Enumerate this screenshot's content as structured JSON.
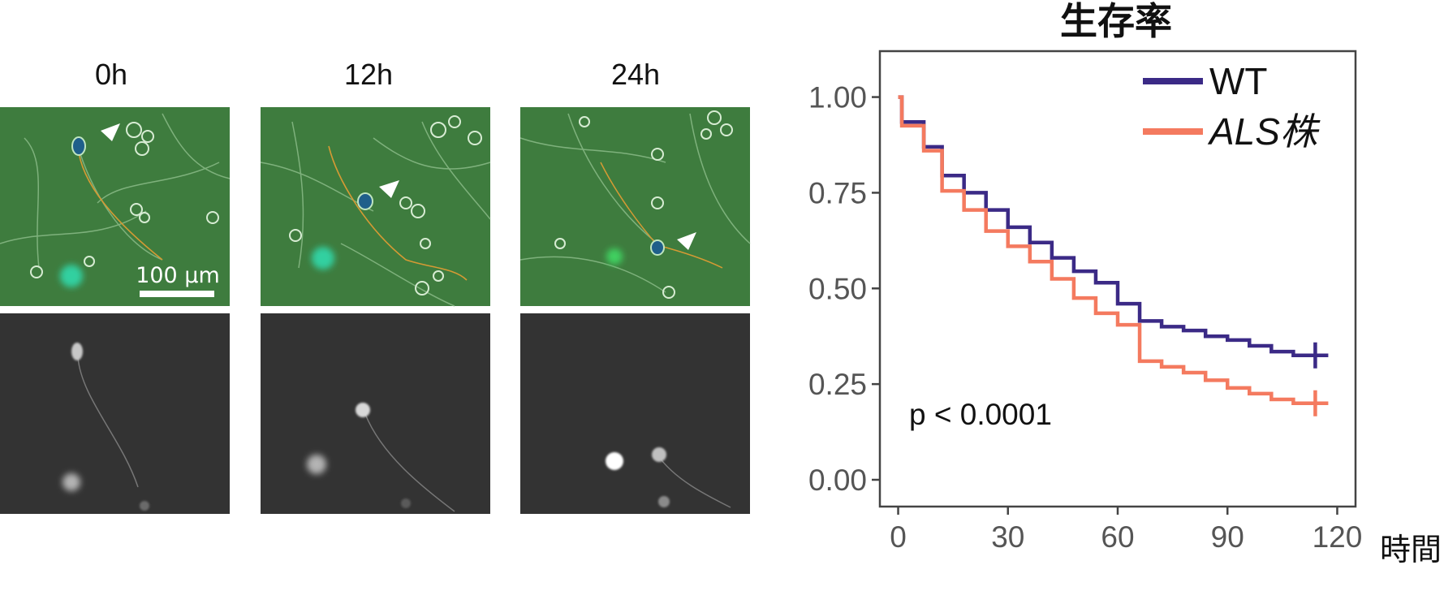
{
  "panels": {
    "time_labels": [
      "0h",
      "12h",
      "24h"
    ],
    "scale_bar_label": "100 µm",
    "colors": {
      "phase_bg": "#3e7c3e",
      "fluor_bg": "#333333",
      "neurite": "#d59a34",
      "cell_fill": "#1f5f8a",
      "cyan_cell": "#30d0a0",
      "arrow": "#ffffff"
    }
  },
  "chart_data": {
    "type": "line",
    "title": "生存率",
    "xlabel": "時間",
    "ylabel": "",
    "xlim": [
      -5,
      125
    ],
    "ylim": [
      -0.07,
      1.12
    ],
    "xticks": [
      0,
      30,
      60,
      90,
      120
    ],
    "yticks": [
      0.0,
      0.25,
      0.5,
      0.75,
      1.0
    ],
    "ytick_labels": [
      "0.00",
      "0.25",
      "0.50",
      "0.75",
      "1.00"
    ],
    "step": true,
    "censor_marker": "+",
    "legend_position": "top-right",
    "annotation": "p < 0.0001",
    "series": [
      {
        "name": "WT",
        "color": "#3b2a86",
        "x": [
          0,
          1,
          7,
          12,
          18,
          24,
          30,
          36,
          42,
          48,
          54,
          60,
          66,
          72,
          78,
          84,
          90,
          96,
          102,
          108,
          114
        ],
        "values": [
          1.0,
          0.935,
          0.87,
          0.795,
          0.75,
          0.705,
          0.66,
          0.62,
          0.58,
          0.545,
          0.515,
          0.46,
          0.415,
          0.4,
          0.39,
          0.375,
          0.365,
          0.35,
          0.335,
          0.325,
          0.325
        ]
      },
      {
        "name": "ALS株",
        "color": "#f47a5f",
        "x": [
          0,
          1,
          7,
          12,
          18,
          24,
          30,
          36,
          42,
          48,
          54,
          60,
          66,
          72,
          78,
          84,
          90,
          96,
          102,
          108,
          114
        ],
        "values": [
          1.0,
          0.925,
          0.86,
          0.755,
          0.705,
          0.65,
          0.61,
          0.57,
          0.525,
          0.475,
          0.435,
          0.405,
          0.31,
          0.295,
          0.28,
          0.26,
          0.24,
          0.225,
          0.21,
          0.2,
          0.2
        ]
      }
    ]
  }
}
